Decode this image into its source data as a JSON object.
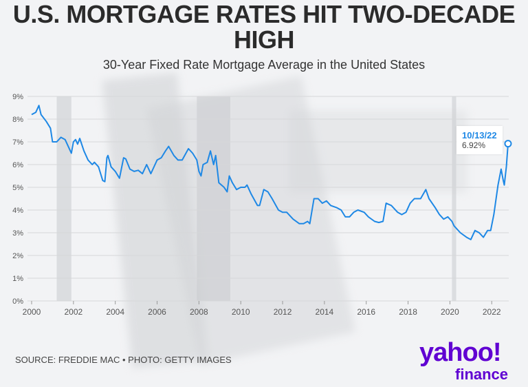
{
  "title": "U.S. MORTGAGE RATES HIT TWO-DECADE HIGH",
  "subtitle": "30-Year Fixed Rate Mortgage Average in the United States",
  "source": "SOURCE: FREDDIE MAC • PHOTO: GETTY IMAGES",
  "logo": {
    "word": "yahoo!",
    "sub": "finance",
    "color": "#6001d2"
  },
  "chart_data": {
    "type": "line",
    "title": "30-Year Fixed Rate Mortgage Average in the United States",
    "xlim": [
      2000,
      2022.9
    ],
    "ylim": [
      0,
      9
    ],
    "x_ticks": [
      "2000",
      "2002",
      "2004",
      "2006",
      "2008",
      "2010",
      "2012",
      "2014",
      "2016",
      "2018",
      "2020",
      "2022"
    ],
    "y_ticks": [
      "0%",
      "1%",
      "2%",
      "3%",
      "4%",
      "5%",
      "6%",
      "7%",
      "8%",
      "9%"
    ],
    "grid": "horizontal",
    "line_color": "#1e88e5",
    "recession_bands": [
      [
        2001.2,
        2001.9
      ],
      [
        2007.9,
        2009.5
      ],
      [
        2020.1,
        2020.3
      ]
    ],
    "annotation": {
      "date": "10/13/22",
      "value": "6.92%"
    },
    "points": [
      [
        2000.0,
        8.2
      ],
      [
        2000.2,
        8.3
      ],
      [
        2000.35,
        8.6
      ],
      [
        2000.45,
        8.2
      ],
      [
        2000.7,
        7.9
      ],
      [
        2000.9,
        7.6
      ],
      [
        2001.0,
        7.0
      ],
      [
        2001.2,
        7.0
      ],
      [
        2001.4,
        7.2
      ],
      [
        2001.6,
        7.1
      ],
      [
        2001.8,
        6.7
      ],
      [
        2001.9,
        6.5
      ],
      [
        2002.0,
        7.0
      ],
      [
        2002.1,
        7.1
      ],
      [
        2002.2,
        6.9
      ],
      [
        2002.3,
        7.15
      ],
      [
        2002.5,
        6.6
      ],
      [
        2002.7,
        6.2
      ],
      [
        2002.9,
        6.0
      ],
      [
        2003.0,
        6.1
      ],
      [
        2003.2,
        5.9
      ],
      [
        2003.4,
        5.3
      ],
      [
        2003.5,
        5.25
      ],
      [
        2003.6,
        6.3
      ],
      [
        2003.65,
        6.4
      ],
      [
        2003.8,
        5.9
      ],
      [
        2004.0,
        5.7
      ],
      [
        2004.2,
        5.4
      ],
      [
        2004.4,
        6.3
      ],
      [
        2004.5,
        6.25
      ],
      [
        2004.7,
        5.8
      ],
      [
        2004.9,
        5.7
      ],
      [
        2005.1,
        5.75
      ],
      [
        2005.3,
        5.6
      ],
      [
        2005.5,
        6.0
      ],
      [
        2005.7,
        5.6
      ],
      [
        2005.9,
        6.0
      ],
      [
        2006.0,
        6.2
      ],
      [
        2006.2,
        6.3
      ],
      [
        2006.4,
        6.6
      ],
      [
        2006.55,
        6.8
      ],
      [
        2006.8,
        6.4
      ],
      [
        2007.0,
        6.2
      ],
      [
        2007.2,
        6.2
      ],
      [
        2007.5,
        6.7
      ],
      [
        2007.7,
        6.5
      ],
      [
        2007.9,
        6.2
      ],
      [
        2008.0,
        5.7
      ],
      [
        2008.1,
        5.5
      ],
      [
        2008.2,
        6.0
      ],
      [
        2008.4,
        6.1
      ],
      [
        2008.55,
        6.6
      ],
      [
        2008.7,
        6.0
      ],
      [
        2008.8,
        6.4
      ],
      [
        2008.95,
        5.2
      ],
      [
        2009.2,
        5.0
      ],
      [
        2009.35,
        4.8
      ],
      [
        2009.45,
        5.5
      ],
      [
        2009.6,
        5.2
      ],
      [
        2009.8,
        4.9
      ],
      [
        2010.0,
        5.0
      ],
      [
        2010.2,
        5.0
      ],
      [
        2010.3,
        5.1
      ],
      [
        2010.5,
        4.7
      ],
      [
        2010.8,
        4.2
      ],
      [
        2010.9,
        4.2
      ],
      [
        2011.1,
        4.9
      ],
      [
        2011.3,
        4.8
      ],
      [
        2011.5,
        4.5
      ],
      [
        2011.8,
        4.0
      ],
      [
        2012.0,
        3.9
      ],
      [
        2012.2,
        3.9
      ],
      [
        2012.5,
        3.6
      ],
      [
        2012.8,
        3.4
      ],
      [
        2013.0,
        3.4
      ],
      [
        2013.2,
        3.5
      ],
      [
        2013.3,
        3.4
      ],
      [
        2013.5,
        4.5
      ],
      [
        2013.7,
        4.5
      ],
      [
        2013.9,
        4.3
      ],
      [
        2014.1,
        4.4
      ],
      [
        2014.3,
        4.2
      ],
      [
        2014.6,
        4.1
      ],
      [
        2014.8,
        4.0
      ],
      [
        2015.0,
        3.7
      ],
      [
        2015.2,
        3.7
      ],
      [
        2015.4,
        3.9
      ],
      [
        2015.6,
        4.0
      ],
      [
        2015.9,
        3.9
      ],
      [
        2016.1,
        3.7
      ],
      [
        2016.4,
        3.5
      ],
      [
        2016.6,
        3.45
      ],
      [
        2016.8,
        3.5
      ],
      [
        2016.95,
        4.3
      ],
      [
        2017.2,
        4.2
      ],
      [
        2017.5,
        3.9
      ],
      [
        2017.7,
        3.8
      ],
      [
        2017.9,
        3.9
      ],
      [
        2018.1,
        4.3
      ],
      [
        2018.3,
        4.5
      ],
      [
        2018.6,
        4.5
      ],
      [
        2018.85,
        4.9
      ],
      [
        2019.0,
        4.5
      ],
      [
        2019.3,
        4.1
      ],
      [
        2019.5,
        3.8
      ],
      [
        2019.7,
        3.6
      ],
      [
        2019.9,
        3.7
      ],
      [
        2020.1,
        3.5
      ],
      [
        2020.2,
        3.3
      ],
      [
        2020.5,
        3.0
      ],
      [
        2020.8,
        2.8
      ],
      [
        2021.0,
        2.7
      ],
      [
        2021.2,
        3.1
      ],
      [
        2021.4,
        3.0
      ],
      [
        2021.6,
        2.8
      ],
      [
        2021.8,
        3.1
      ],
      [
        2021.95,
        3.1
      ],
      [
        2022.1,
        3.8
      ],
      [
        2022.3,
        5.1
      ],
      [
        2022.45,
        5.8
      ],
      [
        2022.55,
        5.3
      ],
      [
        2022.6,
        5.1
      ],
      [
        2022.7,
        5.9
      ],
      [
        2022.78,
        6.92
      ]
    ]
  }
}
